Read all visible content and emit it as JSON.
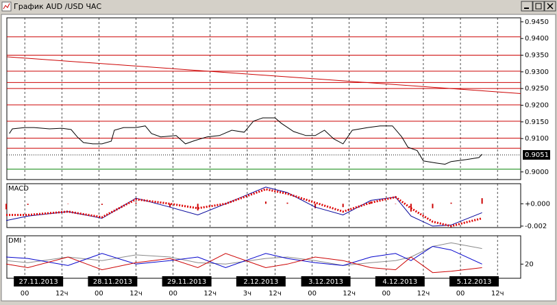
{
  "window_title": "График AUD /USD ЧАС",
  "chart_data": [
    {
      "type": "line",
      "xlim": [
        -5.8,
        160.5
      ],
      "ylim": [
        0.8977,
        0.9462
      ],
      "yticks": [
        {
          "value": 0.945,
          "label": "0.9450"
        },
        {
          "value": 0.94,
          "label": "0.9400"
        },
        {
          "value": 0.935,
          "label": "0.9350"
        },
        {
          "value": 0.93,
          "label": "0.9300"
        },
        {
          "value": 0.925,
          "label": "0.9250"
        },
        {
          "value": 0.92,
          "label": "0.9200"
        },
        {
          "value": 0.915,
          "label": "0.9150"
        },
        {
          "value": 0.91,
          "label": "0.9100"
        },
        {
          "value": 0.9,
          "label": "0.9000"
        }
      ],
      "levels": [
        0.9405,
        0.935,
        0.9302,
        0.9268,
        0.925,
        0.9201,
        0.9152,
        0.9101,
        0.9071
      ],
      "level_color": "#cc0000",
      "support_level": 0.9008,
      "support_color": "#008000",
      "trendline": {
        "x": [
          -5.8,
          160.5
        ],
        "values": [
          0.9345,
          0.9235
        ]
      },
      "last_price": {
        "value": 0.9051,
        "label": "0.9051"
      },
      "x": [
        -5,
        -4,
        0,
        3,
        8,
        12,
        15,
        17,
        19,
        22,
        25,
        28,
        29,
        32,
        36,
        39,
        41,
        44,
        49,
        52,
        55,
        59,
        63,
        67,
        71,
        74,
        77,
        81,
        83,
        87,
        91,
        94,
        97,
        100,
        103,
        106,
        111,
        115,
        119,
        122,
        124,
        127,
        129,
        133,
        136,
        138,
        143,
        147,
        148
      ],
      "series": [
        {
          "color": "#000000",
          "values": [
            0.9115,
            0.9129,
            0.9133,
            0.9133,
            0.9129,
            0.9131,
            0.9127,
            0.9105,
            0.9088,
            0.9084,
            0.9084,
            0.9092,
            0.9125,
            0.9133,
            0.9133,
            0.9138,
            0.9115,
            0.9105,
            0.9109,
            0.9084,
            0.9094,
            0.9105,
            0.9109,
            0.9125,
            0.9119,
            0.9152,
            0.9162,
            0.9162,
            0.9146,
            0.9121,
            0.9109,
            0.9109,
            0.9125,
            0.9099,
            0.9084,
            0.9125,
            0.9133,
            0.9138,
            0.9138,
            0.9105,
            0.9074,
            0.9064,
            0.9033,
            0.9027,
            0.9023,
            0.9031,
            0.9037,
            0.9043,
            0.9053
          ]
        }
      ]
    },
    {
      "type": "line",
      "title": "MACD",
      "xlim": [
        -5.8,
        160.5
      ],
      "ylim": [
        -0.00213,
        0.0018
      ],
      "yticks": [
        {
          "value": 0,
          "label": "+0.000"
        },
        {
          "value": -0.002,
          "label": "-0.002"
        }
      ],
      "x": [
        -6,
        1,
        14,
        25,
        36,
        47,
        56,
        65,
        78,
        85,
        94,
        103,
        112,
        120,
        125,
        132,
        138,
        148
      ],
      "series": [
        {
          "color": "#cc0000",
          "kind": "bar",
          "values": [
            -0.0005,
            -0.0001,
            0,
            -0.0001,
            0.0001,
            -0.0003,
            -0.0006,
            0,
            0.0002,
            0.0001,
            -0.0004,
            -0.0003,
            0.0002,
            0,
            -0.0007,
            -0.0004,
            0.0001,
            0.0005
          ]
        },
        {
          "color": "#000099",
          "values": [
            -0.0015,
            -0.0011,
            -0.0007,
            -0.0013,
            0.0005,
            -0.0003,
            -0.001,
            0,
            0.0015,
            0.001,
            -0.0003,
            -0.001,
            0.0003,
            0.0006,
            -0.0011,
            -0.002,
            -0.0019,
            -0.0008
          ]
        },
        {
          "color": "#dd0000",
          "dotted": true,
          "values": [
            -0.001,
            -0.001,
            -0.0007,
            -0.0012,
            0.0004,
            0,
            -0.0004,
            0,
            0.0013,
            0.0009,
            0.0001,
            -0.0007,
            0.0001,
            0.0006,
            -0.0004,
            -0.0016,
            -0.002,
            -0.0013
          ]
        }
      ]
    },
    {
      "type": "line",
      "title": "DMI",
      "xlim": [
        -5.8,
        160.5
      ],
      "ylim": [
        0,
        60
      ],
      "yticks": [
        20
      ],
      "x": [
        -6,
        1,
        14,
        25,
        36,
        47,
        56,
        65,
        78,
        85,
        94,
        103,
        112,
        120,
        125,
        132,
        138,
        148
      ],
      "series": [
        {
          "color": "#888888",
          "values": [
            25,
            22,
            30,
            25,
            33,
            30,
            22,
            20,
            28,
            30,
            25,
            18,
            22,
            25,
            30,
            45,
            50,
            42
          ]
        },
        {
          "color": "#0000cc",
          "values": [
            30,
            28,
            18,
            35,
            20,
            25,
            30,
            15,
            35,
            28,
            22,
            18,
            30,
            35,
            25,
            45,
            40,
            20
          ]
        },
        {
          "color": "#cc0000",
          "values": [
            20,
            15,
            30,
            12,
            22,
            28,
            15,
            35,
            15,
            20,
            30,
            25,
            15,
            12,
            30,
            8,
            10,
            15
          ]
        }
      ],
      "xticks": [
        {
          "value": 0,
          "label": "00"
        },
        {
          "value": 12,
          "label": "12ч"
        },
        {
          "value": 24,
          "label": "00"
        },
        {
          "value": 36,
          "label": "12ч"
        },
        {
          "value": 48,
          "label": "00"
        },
        {
          "value": 60,
          "label": "12ч"
        },
        {
          "value": 72,
          "label": "3ч"
        },
        {
          "value": 81,
          "label": "12ч"
        },
        {
          "value": 93,
          "label": "00"
        },
        {
          "value": 105,
          "label": "12ч"
        },
        {
          "value": 117,
          "label": "00"
        },
        {
          "value": 129,
          "label": "12ч"
        },
        {
          "value": 141,
          "label": "00"
        },
        {
          "value": 153,
          "label": "12ч"
        }
      ],
      "dates": [
        {
          "value": 0,
          "label": "27.11.2013"
        },
        {
          "value": 24,
          "label": "28.11.2013"
        },
        {
          "value": 48,
          "label": "29.11.2013"
        },
        {
          "value": 72,
          "label": "2.12.2013"
        },
        {
          "value": 93,
          "label": "3.12.2013"
        },
        {
          "value": 117,
          "label": "4.12.2013"
        },
        {
          "value": 141,
          "label": "5.12.2013"
        }
      ]
    }
  ]
}
